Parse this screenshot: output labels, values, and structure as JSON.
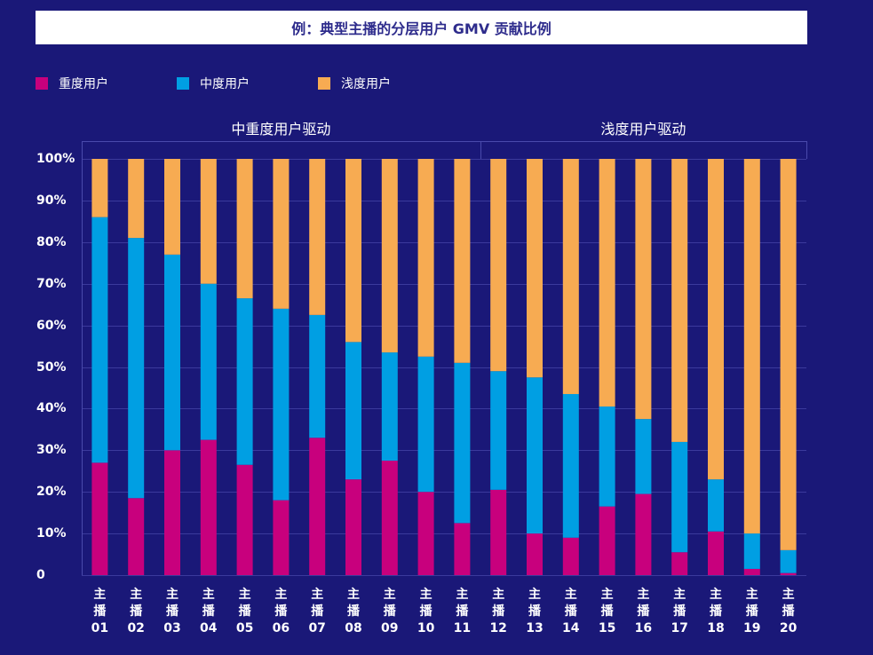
{
  "colors": {
    "background": "#1a1878",
    "title_box": "#ffffff",
    "title_text": "#2e2c8c",
    "grid": "#3b3a9c",
    "axis": "#4a4aac",
    "text": "#ffffff"
  },
  "chart_data": {
    "type": "bar",
    "stacked": true,
    "stack_mode": "percent",
    "title": "例：典型主播的分层用户 GMV 贡献比例",
    "xlabel": "",
    "ylabel": "",
    "ylim": [
      0,
      100
    ],
    "yticks": [
      0,
      10,
      20,
      30,
      40,
      50,
      60,
      70,
      80,
      90,
      100
    ],
    "ytick_labels": [
      "0",
      "10%",
      "20%",
      "30%",
      "40%",
      "50%",
      "60%",
      "70%",
      "80%",
      "90%",
      "100%"
    ],
    "grid": true,
    "legend_position": "top-left",
    "categories": [
      "主播01",
      "主播02",
      "主播03",
      "主播04",
      "主播05",
      "主播06",
      "主播07",
      "主播08",
      "主播09",
      "主播10",
      "主播11",
      "主播12",
      "主播13",
      "主播14",
      "主播15",
      "主播16",
      "主播17",
      "主播18",
      "主播19",
      "主播20"
    ],
    "groups": [
      {
        "label": "中重度用户驱动",
        "first_category": 0,
        "last_category": 10
      },
      {
        "label": "浅度用户驱动",
        "first_category": 11,
        "last_category": 19
      }
    ],
    "series": [
      {
        "name": "重度用户",
        "color": "#c8007d",
        "values": [
          27,
          18.5,
          30,
          32.5,
          26.5,
          18,
          33,
          23,
          27.5,
          20,
          12.5,
          20.5,
          10,
          9,
          16.5,
          19.5,
          5.5,
          10.5,
          1.5,
          0.5
        ]
      },
      {
        "name": "中度用户",
        "color": "#009fe3",
        "values": [
          59,
          62.5,
          47,
          37.5,
          40,
          46,
          29.5,
          33,
          26,
          32.5,
          38.5,
          28.5,
          37.5,
          34.5,
          24,
          18,
          26.5,
          12.5,
          8.5,
          5.5
        ]
      },
      {
        "name": "浅度用户",
        "color": "#f7ab52",
        "values": [
          14,
          19,
          23,
          30,
          33.5,
          36,
          37.5,
          44,
          46.5,
          47.5,
          49,
          51,
          52.5,
          56.5,
          59.5,
          62.5,
          68,
          77,
          90,
          94
        ]
      }
    ]
  }
}
